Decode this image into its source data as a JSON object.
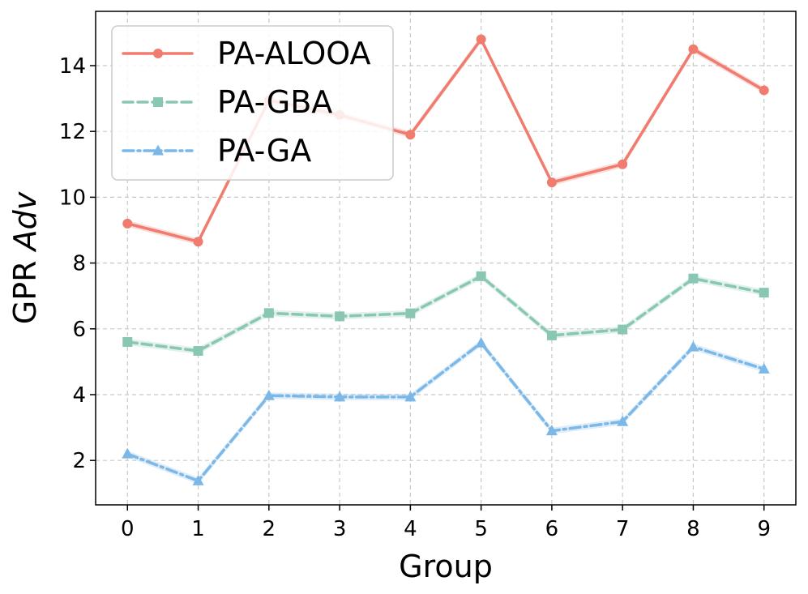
{
  "chart_data": {
    "type": "line",
    "title": "",
    "xlabel": "Group",
    "ylabel_prefix": "GPR",
    "ylabel_italic": "Adv",
    "x": [
      0,
      1,
      2,
      3,
      4,
      5,
      6,
      7,
      8,
      9
    ],
    "x_ticks": [
      "0",
      "1",
      "2",
      "3",
      "4",
      "5",
      "6",
      "7",
      "8",
      "9"
    ],
    "y_ticks": [
      "2",
      "4",
      "6",
      "8",
      "10",
      "12",
      "14"
    ],
    "y_tick_values": [
      2,
      4,
      6,
      8,
      10,
      12,
      14
    ],
    "xlim": [
      -0.45,
      9.45
    ],
    "ylim": [
      0.65,
      15.65
    ],
    "grid": true,
    "legend_position": "top-left",
    "series": [
      {
        "name": "PA-ALOOA",
        "color": "#f07b6f",
        "marker": "circle",
        "linestyle": "solid",
        "values": [
          9.2,
          8.65,
          12.95,
          12.5,
          11.9,
          14.8,
          10.45,
          11.0,
          14.5,
          13.25
        ]
      },
      {
        "name": "PA-GBA",
        "color": "#8ac6b4",
        "marker": "square",
        "linestyle": "dashed",
        "values": [
          5.6,
          5.33,
          6.48,
          6.38,
          6.47,
          7.6,
          5.8,
          5.98,
          7.53,
          7.1
        ]
      },
      {
        "name": "PA-GA",
        "color": "#7bb8e8",
        "marker": "triangle",
        "linestyle": "dashdot",
        "values": [
          2.2,
          1.38,
          3.97,
          3.93,
          3.93,
          5.57,
          2.9,
          3.18,
          5.45,
          4.78
        ]
      }
    ]
  }
}
